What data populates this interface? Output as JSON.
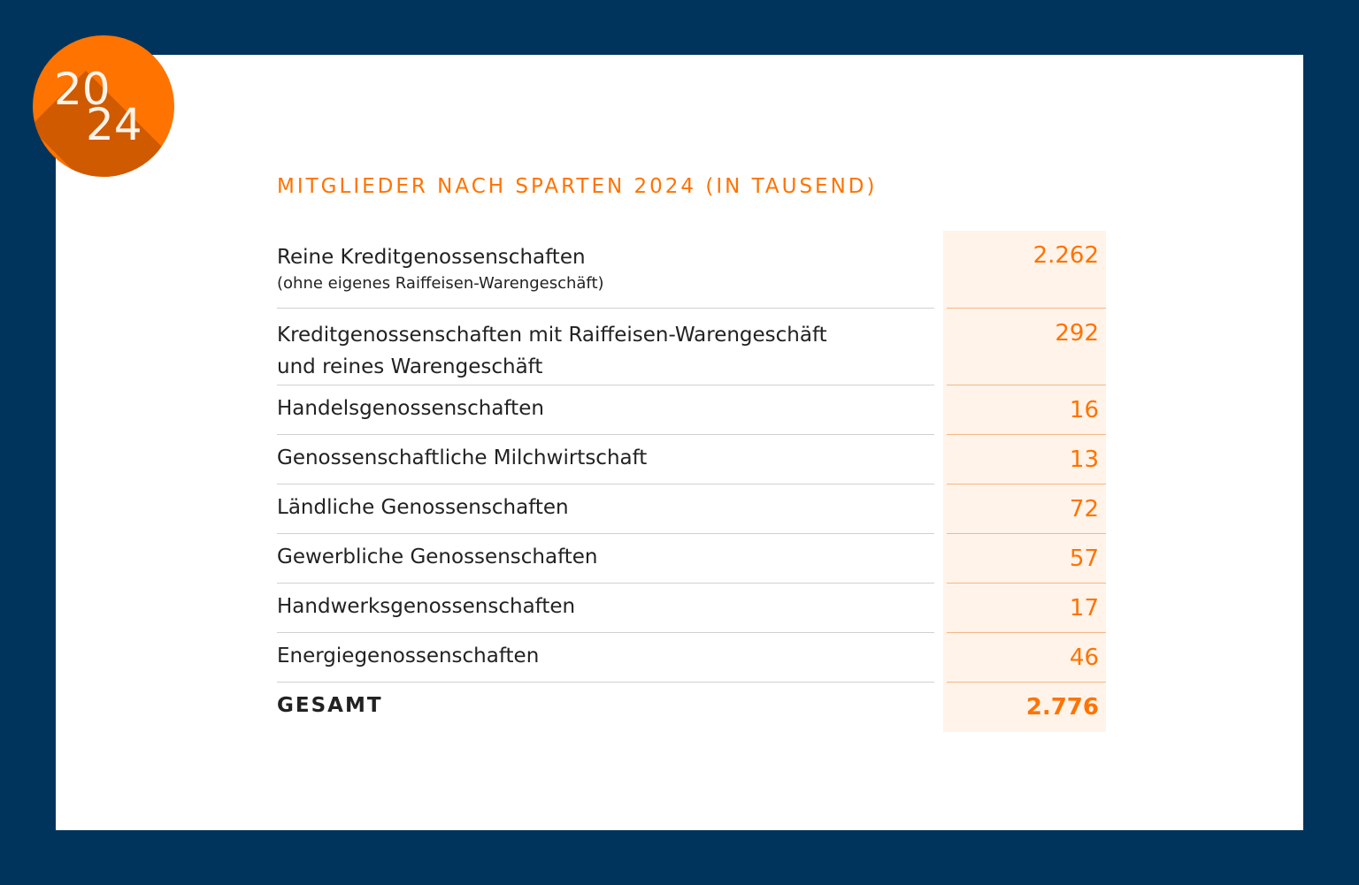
{
  "badge": {
    "year_top": "20",
    "year_bottom": "24"
  },
  "title": "MITGLIEDER NACH SPARTEN 2024 (IN TAUSEND)",
  "colors": {
    "background": "#00345c",
    "accent": "#ff7300",
    "value_column": "#fff3ea"
  },
  "chart_data": {
    "type": "table",
    "title": "MITGLIEDER NACH SPARTEN 2024 (IN TAUSEND)",
    "rows": [
      {
        "label": "Reine Kreditgenossenschaften",
        "note": "(ohne eigenes Raiffeisen-Warengeschäft)",
        "value": "2.262"
      },
      {
        "label": "Kreditgenossenschaften mit Raiffeisen-Warengeschäft",
        "label2": "und reines Warengeschäft",
        "value": "292"
      },
      {
        "label": "Handelsgenossenschaften",
        "value": "16"
      },
      {
        "label": "Genossenschaftliche Milchwirtschaft",
        "value": "13"
      },
      {
        "label": "Ländliche Genossenschaften",
        "value": "72"
      },
      {
        "label": "Gewerbliche Genossenschaften",
        "value": "57"
      },
      {
        "label": "Handwerksgenossenschaften",
        "value": "17"
      },
      {
        "label": "Energiegenossenschaften",
        "value": "46"
      }
    ],
    "total": {
      "label": "GESAMT",
      "value": "2.776"
    }
  }
}
